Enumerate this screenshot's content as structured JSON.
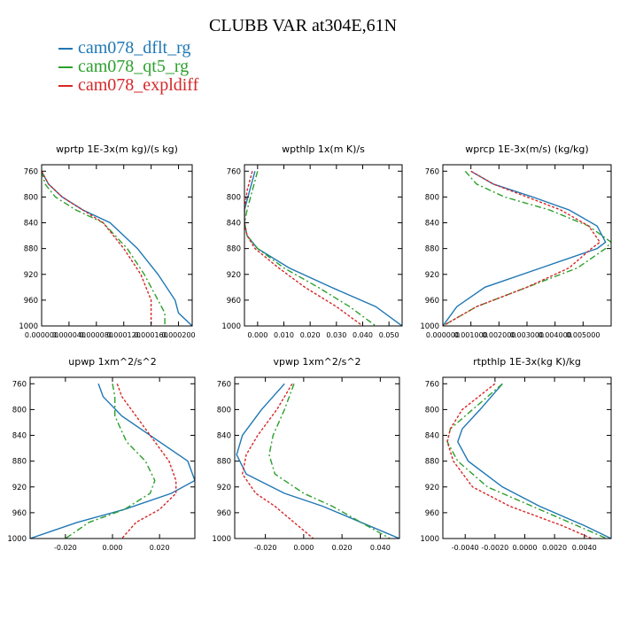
{
  "page": {
    "title": "CLUBB VAR at304E,61N"
  },
  "legend": [
    {
      "label": "cam078_dflt_rg",
      "color": "#1f77b4"
    },
    {
      "label": "cam078_qt5_rg",
      "color": "#2ca02c"
    },
    {
      "label": "cam078_expldiff",
      "color": "#d62728"
    }
  ],
  "chart_data": [
    {
      "type": "line",
      "title": "wprtp  1E-3x(m kg)/(s kg)",
      "xlim": [
        0,
        0.00022
      ],
      "ylim": [
        1000,
        750
      ],
      "x_ticks": [
        "0.000000",
        "0.000040",
        "0.000080",
        "0.000120",
        "0.000160",
        "0.000200"
      ],
      "x_tick_values": [
        0,
        4e-05,
        8e-05,
        0.00012,
        0.00016,
        0.0002
      ],
      "y_ticks": [
        760,
        800,
        840,
        880,
        920,
        960,
        1000
      ],
      "series": [
        {
          "name": "cam078_dflt_rg",
          "x": [
            0.0,
            1e-05,
            3e-05,
            6e-05,
            0.0001,
            0.00014,
            0.00017,
            0.000195,
            0.0002,
            0.00022
          ],
          "y": [
            760,
            780,
            800,
            820,
            840,
            880,
            920,
            960,
            980,
            1000
          ]
        },
        {
          "name": "cam078_qt5_rg",
          "x": [
            0.0,
            5e-06,
            2e-05,
            5e-05,
            9e-05,
            0.000125,
            0.00015,
            0.00017,
            0.00018,
            0.00018
          ],
          "y": [
            760,
            780,
            800,
            820,
            840,
            880,
            920,
            960,
            980,
            1000
          ]
        },
        {
          "name": "cam078_expldiff",
          "x": [
            0.0,
            1e-05,
            3e-05,
            6e-05,
            9e-05,
            0.00012,
            0.000145,
            0.00016,
            0.00016,
            0.00016
          ],
          "y": [
            760,
            780,
            800,
            820,
            840,
            880,
            920,
            960,
            980,
            1000
          ]
        }
      ]
    },
    {
      "type": "line",
      "title": "wpthlp  1x(m K)/s",
      "xlim": [
        -0.005,
        0.055
      ],
      "ylim": [
        1000,
        750
      ],
      "x_ticks": [
        "0.000",
        "0.010",
        "0.020",
        "0.030",
        "0.040",
        "0.050"
      ],
      "x_tick_values": [
        0.0,
        0.01,
        0.02,
        0.03,
        0.04,
        0.05
      ],
      "y_ticks": [
        760,
        800,
        840,
        880,
        920,
        960,
        1000
      ],
      "series": [
        {
          "name": "cam078_dflt_rg",
          "x": [
            -0.001,
            -0.003,
            -0.005,
            -0.005,
            -0.004,
            0.0,
            0.012,
            0.028,
            0.045,
            0.055
          ],
          "y": [
            760,
            790,
            820,
            840,
            860,
            880,
            910,
            940,
            970,
            1000
          ]
        },
        {
          "name": "cam078_qt5_rg",
          "x": [
            0.0,
            -0.002,
            -0.004,
            -0.005,
            -0.004,
            0.0,
            0.01,
            0.023,
            0.035,
            0.045
          ],
          "y": [
            760,
            790,
            820,
            840,
            860,
            880,
            910,
            940,
            970,
            1000
          ]
        },
        {
          "name": "cam078_expldiff",
          "x": [
            -0.002,
            -0.004,
            -0.005,
            -0.005,
            -0.004,
            -0.001,
            0.008,
            0.018,
            0.03,
            0.04
          ],
          "y": [
            760,
            790,
            820,
            840,
            860,
            880,
            910,
            940,
            970,
            1000
          ]
        }
      ]
    },
    {
      "type": "line",
      "title": "wprcp  1E-3x(m/s) (kg/kg)",
      "xlim": [
        0,
        0.006
      ],
      "ylim": [
        1000,
        750
      ],
      "x_ticks": [
        "0.000000",
        "0.001000",
        "0.002000",
        "0.003000",
        "0.004000",
        "0.005000"
      ],
      "x_tick_values": [
        0,
        0.001,
        0.002,
        0.003,
        0.004,
        0.005
      ],
      "y_ticks": [
        760,
        800,
        840,
        880,
        920,
        960,
        1000
      ],
      "series": [
        {
          "name": "cam078_dflt_rg",
          "x": [
            0.001,
            0.0018,
            0.0032,
            0.0045,
            0.0055,
            0.0058,
            0.0055,
            0.0035,
            0.0015,
            0.0005,
            0.0
          ],
          "y": [
            760,
            780,
            800,
            820,
            845,
            870,
            880,
            910,
            940,
            970,
            1000
          ]
        },
        {
          "name": "cam078_qt5_rg",
          "x": [
            0.0008,
            0.0012,
            0.0022,
            0.0038,
            0.0052,
            0.006,
            0.0058,
            0.0048,
            0.003,
            0.0012,
            0.0
          ],
          "y": [
            760,
            780,
            800,
            820,
            845,
            870,
            880,
            910,
            940,
            970,
            1000
          ]
        },
        {
          "name": "cam078_expldiff",
          "x": [
            0.001,
            0.0018,
            0.003,
            0.0042,
            0.0052,
            0.0056,
            0.0053,
            0.0045,
            0.003,
            0.0012,
            0.0
          ],
          "y": [
            760,
            780,
            800,
            820,
            845,
            870,
            880,
            910,
            940,
            970,
            1000
          ]
        }
      ]
    },
    {
      "type": "line",
      "title": "upwp  1xm^2/s^2",
      "xlim": [
        -0.035,
        0.035
      ],
      "ylim": [
        1000,
        750
      ],
      "x_ticks": [
        "-0.020",
        "0.000",
        "0.020"
      ],
      "x_tick_values": [
        -0.02,
        0.0,
        0.02
      ],
      "y_ticks": [
        760,
        800,
        840,
        880,
        920,
        960,
        1000
      ],
      "series": [
        {
          "name": "cam078_dflt_rg",
          "x": [
            -0.006,
            -0.004,
            0.004,
            0.02,
            0.032,
            0.035,
            0.025,
            0.005,
            -0.015,
            -0.035
          ],
          "y": [
            760,
            780,
            810,
            850,
            880,
            910,
            930,
            955,
            975,
            1000
          ]
        },
        {
          "name": "cam078_qt5_rg",
          "x": [
            0.0,
            0.001,
            0.001,
            0.006,
            0.014,
            0.018,
            0.016,
            0.005,
            -0.01,
            -0.02
          ],
          "y": [
            760,
            780,
            810,
            850,
            880,
            910,
            930,
            955,
            975,
            1000
          ]
        },
        {
          "name": "cam078_expldiff",
          "x": [
            0.002,
            0.004,
            0.01,
            0.018,
            0.024,
            0.027,
            0.027,
            0.02,
            0.01,
            0.004
          ],
          "y": [
            760,
            780,
            810,
            850,
            880,
            910,
            930,
            955,
            975,
            1000
          ]
        }
      ]
    },
    {
      "type": "line",
      "title": "vpwp  1xm^2/s^2",
      "xlim": [
        -0.036,
        0.05
      ],
      "ylim": [
        1000,
        750
      ],
      "x_ticks": [
        "-0.020",
        "0.000",
        "0.020",
        "0.040"
      ],
      "x_tick_values": [
        -0.02,
        0.0,
        0.02,
        0.04
      ],
      "y_ticks": [
        760,
        800,
        840,
        880,
        920,
        960,
        1000
      ],
      "series": [
        {
          "name": "cam078_dflt_rg",
          "x": [
            -0.01,
            -0.022,
            -0.032,
            -0.035,
            -0.03,
            -0.01,
            0.01,
            0.03,
            0.05
          ],
          "y": [
            760,
            800,
            840,
            870,
            900,
            930,
            950,
            975,
            1000
          ]
        },
        {
          "name": "cam078_qt5_rg",
          "x": [
            -0.005,
            -0.01,
            -0.016,
            -0.018,
            -0.015,
            0.0,
            0.015,
            0.03,
            0.045
          ],
          "y": [
            760,
            800,
            840,
            870,
            900,
            930,
            950,
            975,
            1000
          ]
        },
        {
          "name": "cam078_expldiff",
          "x": [
            -0.006,
            -0.014,
            -0.024,
            -0.03,
            -0.032,
            -0.025,
            -0.015,
            -0.005,
            0.005
          ],
          "y": [
            760,
            800,
            840,
            870,
            900,
            930,
            950,
            975,
            1000
          ]
        }
      ]
    },
    {
      "type": "line",
      "title": "rtpthlp  1E-3x(kg K)/kg",
      "xlim": [
        -0.0055,
        0.0058
      ],
      "ylim": [
        1000,
        750
      ],
      "x_ticks": [
        "-0.0040",
        "-0.0020",
        "0.0000",
        "0.0020",
        "0.0040"
      ],
      "x_tick_values": [
        -0.004,
        -0.002,
        0.0,
        0.002,
        0.004
      ],
      "y_ticks": [
        760,
        800,
        840,
        880,
        920,
        960,
        1000
      ],
      "series": [
        {
          "name": "cam078_dflt_rg",
          "x": [
            -0.0015,
            -0.003,
            -0.0042,
            -0.0045,
            -0.0038,
            -0.0015,
            0.001,
            0.004,
            0.0058
          ],
          "y": [
            760,
            800,
            830,
            850,
            880,
            920,
            950,
            980,
            1000
          ]
        },
        {
          "name": "cam078_qt5_rg",
          "x": [
            -0.0015,
            -0.0035,
            -0.005,
            -0.0052,
            -0.0045,
            -0.0025,
            0.0005,
            0.0035,
            0.0055
          ],
          "y": [
            760,
            800,
            830,
            850,
            880,
            920,
            950,
            980,
            1000
          ]
        },
        {
          "name": "cam078_expldiff",
          "x": [
            -0.002,
            -0.0042,
            -0.005,
            -0.0052,
            -0.0048,
            -0.0035,
            -0.001,
            0.0025,
            0.0045
          ],
          "y": [
            760,
            800,
            830,
            850,
            880,
            920,
            950,
            980,
            1000
          ]
        }
      ]
    }
  ]
}
